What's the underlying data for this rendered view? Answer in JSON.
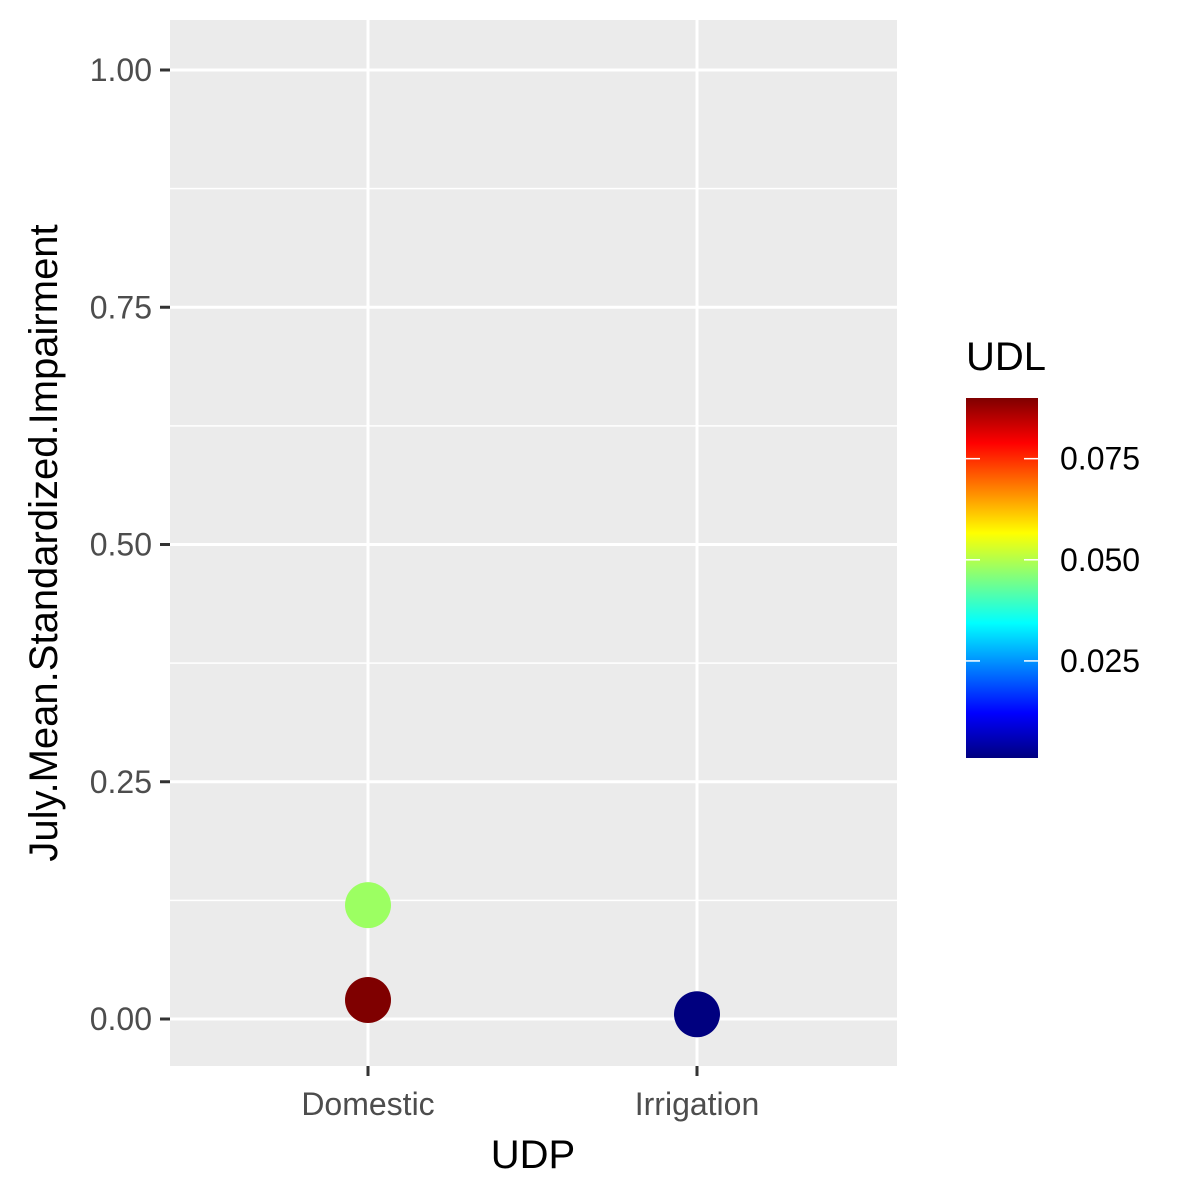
{
  "chart_data": {
    "type": "scatter",
    "xlabel": "UDP",
    "ylabel": "July.Mean.Standardized.Impairment",
    "categories": [
      "Domestic",
      "Irrigation"
    ],
    "ylim": [
      -0.045,
      1.05
    ],
    "y_ticks": [
      {
        "value": 0.0,
        "label": "0.00"
      },
      {
        "value": 0.25,
        "label": "0.25"
      },
      {
        "value": 0.5,
        "label": "0.50"
      },
      {
        "value": 0.75,
        "label": "0.75"
      },
      {
        "value": 1.0,
        "label": "1.00"
      }
    ],
    "y_minor": [
      0.125,
      0.375,
      0.625,
      0.875
    ],
    "points": [
      {
        "category": "Domestic",
        "y": 0.12,
        "color_value": 0.048
      },
      {
        "category": "Domestic",
        "y": 0.02,
        "color_value": 0.09
      },
      {
        "category": "Irrigation",
        "y": 0.005,
        "color_value": 0.001
      }
    ],
    "legend": {
      "title": "UDL",
      "position": "right",
      "range": [
        0.001,
        0.09
      ],
      "ticks": [
        {
          "value": 0.025,
          "label": "0.025"
        },
        {
          "value": 0.05,
          "label": "0.050"
        },
        {
          "value": 0.075,
          "label": "0.075"
        }
      ],
      "colors": [
        "#00007F",
        "#0000FF",
        "#007FFF",
        "#00FFFF",
        "#7FFF7F",
        "#FFFF00",
        "#FF7F00",
        "#FF0000",
        "#7F0000"
      ]
    },
    "panel_color": "#EBEBEB",
    "grid_color": "#FFFFFF"
  }
}
